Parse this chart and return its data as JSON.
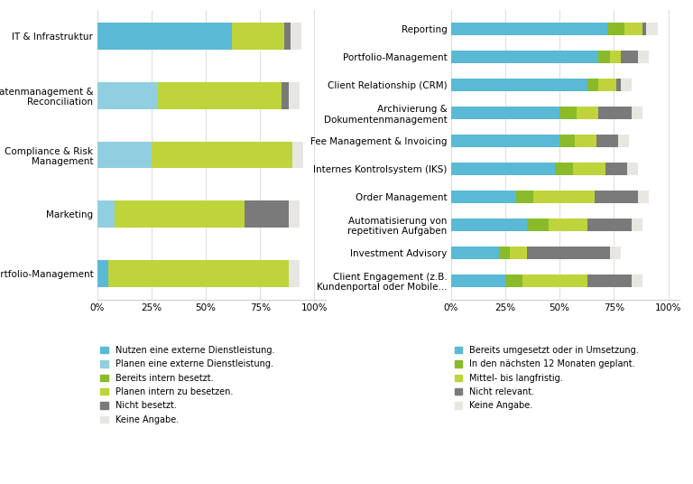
{
  "left_categories": [
    "IT & Infrastruktur",
    "Datenmanagement &\nReconciliation",
    "Compliance & Risk\nManagement",
    "Marketing",
    "Portfolio-Management"
  ],
  "left_data": [
    [
      62,
      0,
      0,
      24,
      3,
      5
    ],
    [
      0,
      28,
      0,
      57,
      3,
      5
    ],
    [
      0,
      25,
      0,
      65,
      0,
      5
    ],
    [
      0,
      8,
      0,
      60,
      20,
      5
    ],
    [
      5,
      0,
      0,
      83,
      0,
      5
    ]
  ],
  "left_colors": [
    "#5ab9d5",
    "#90cfe0",
    "#8aba2a",
    "#bed43a",
    "#7a7a7a",
    "#e8e6e2"
  ],
  "left_legend": [
    "Nutzen eine externe Dienstleistung.",
    "Planen eine externe Dienstleistung.",
    "Bereits intern besetzt.",
    "Planen intern zu besetzen.",
    "Nicht besetzt.",
    "Keine Angabe."
  ],
  "right_categories": [
    "Reporting",
    "Portfolio-Management",
    "Client Relationship (CRM)",
    "Archivierung &\nDokumentenmanagement",
    "Fee Management & Invoicing",
    "Internes Kontrolsystem (IKS)",
    "Order Management",
    "Automatisierung von\nrepetitiven Aufgaben",
    "Investment Advisory",
    "Client Engagement (z.B.\nKundenportal oder Mobile..."
  ],
  "right_data": [
    [
      72,
      8,
      8,
      2,
      5
    ],
    [
      68,
      5,
      5,
      8,
      5
    ],
    [
      63,
      5,
      8,
      2,
      5
    ],
    [
      50,
      8,
      10,
      15,
      5
    ],
    [
      50,
      7,
      10,
      10,
      5
    ],
    [
      48,
      8,
      15,
      10,
      5
    ],
    [
      30,
      8,
      28,
      20,
      5
    ],
    [
      35,
      10,
      18,
      20,
      5
    ],
    [
      22,
      5,
      8,
      38,
      5
    ],
    [
      25,
      8,
      30,
      20,
      5
    ]
  ],
  "right_colors": [
    "#5ab9d5",
    "#8aba2a",
    "#bed43a",
    "#7a7a7a",
    "#e8e6e2"
  ],
  "right_legend": [
    "Bereits umgesetzt oder in Umsetzung.",
    "In den nächsten 12 Monaten geplant.",
    "Mittel- bis langfristig.",
    "Nicht relevant.",
    "Keine Angabe."
  ],
  "bg_color": "#ffffff",
  "font_size": 7.5,
  "bar_height": 0.45
}
